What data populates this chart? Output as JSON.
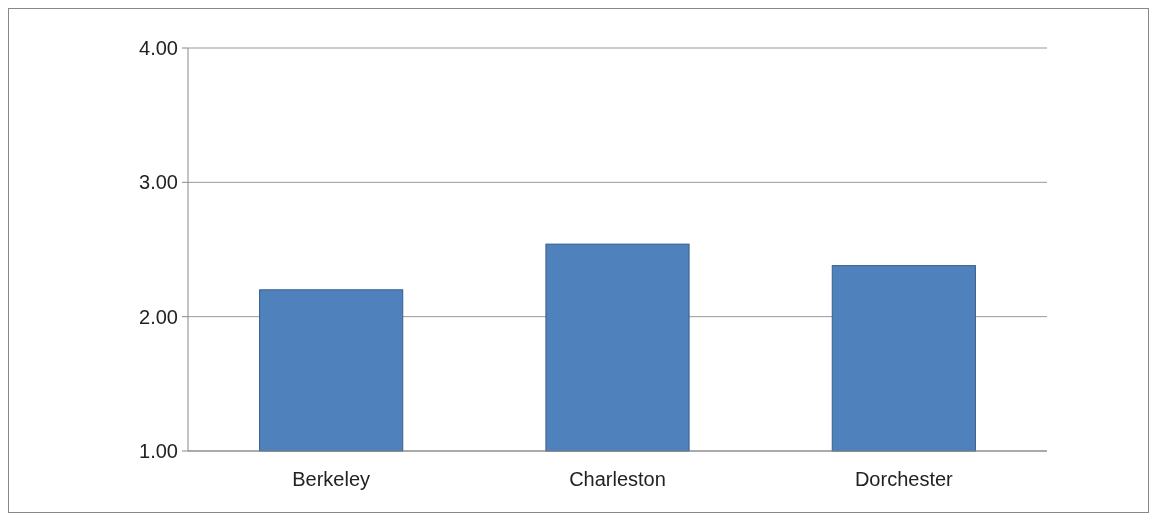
{
  "chart_data": {
    "type": "bar",
    "categories": [
      "Berkeley",
      "Charleston",
      "Dorchester"
    ],
    "values": [
      2.2,
      2.54,
      2.38
    ],
    "color": "#4f81bd",
    "ylim": [
      1,
      4
    ],
    "yticks": [
      {
        "value": 1,
        "label": "1.00"
      },
      {
        "value": 2,
        "label": "2.00"
      },
      {
        "value": 3,
        "label": "3.00"
      },
      {
        "value": 4,
        "label": "4.00"
      }
    ],
    "grid": "y"
  }
}
